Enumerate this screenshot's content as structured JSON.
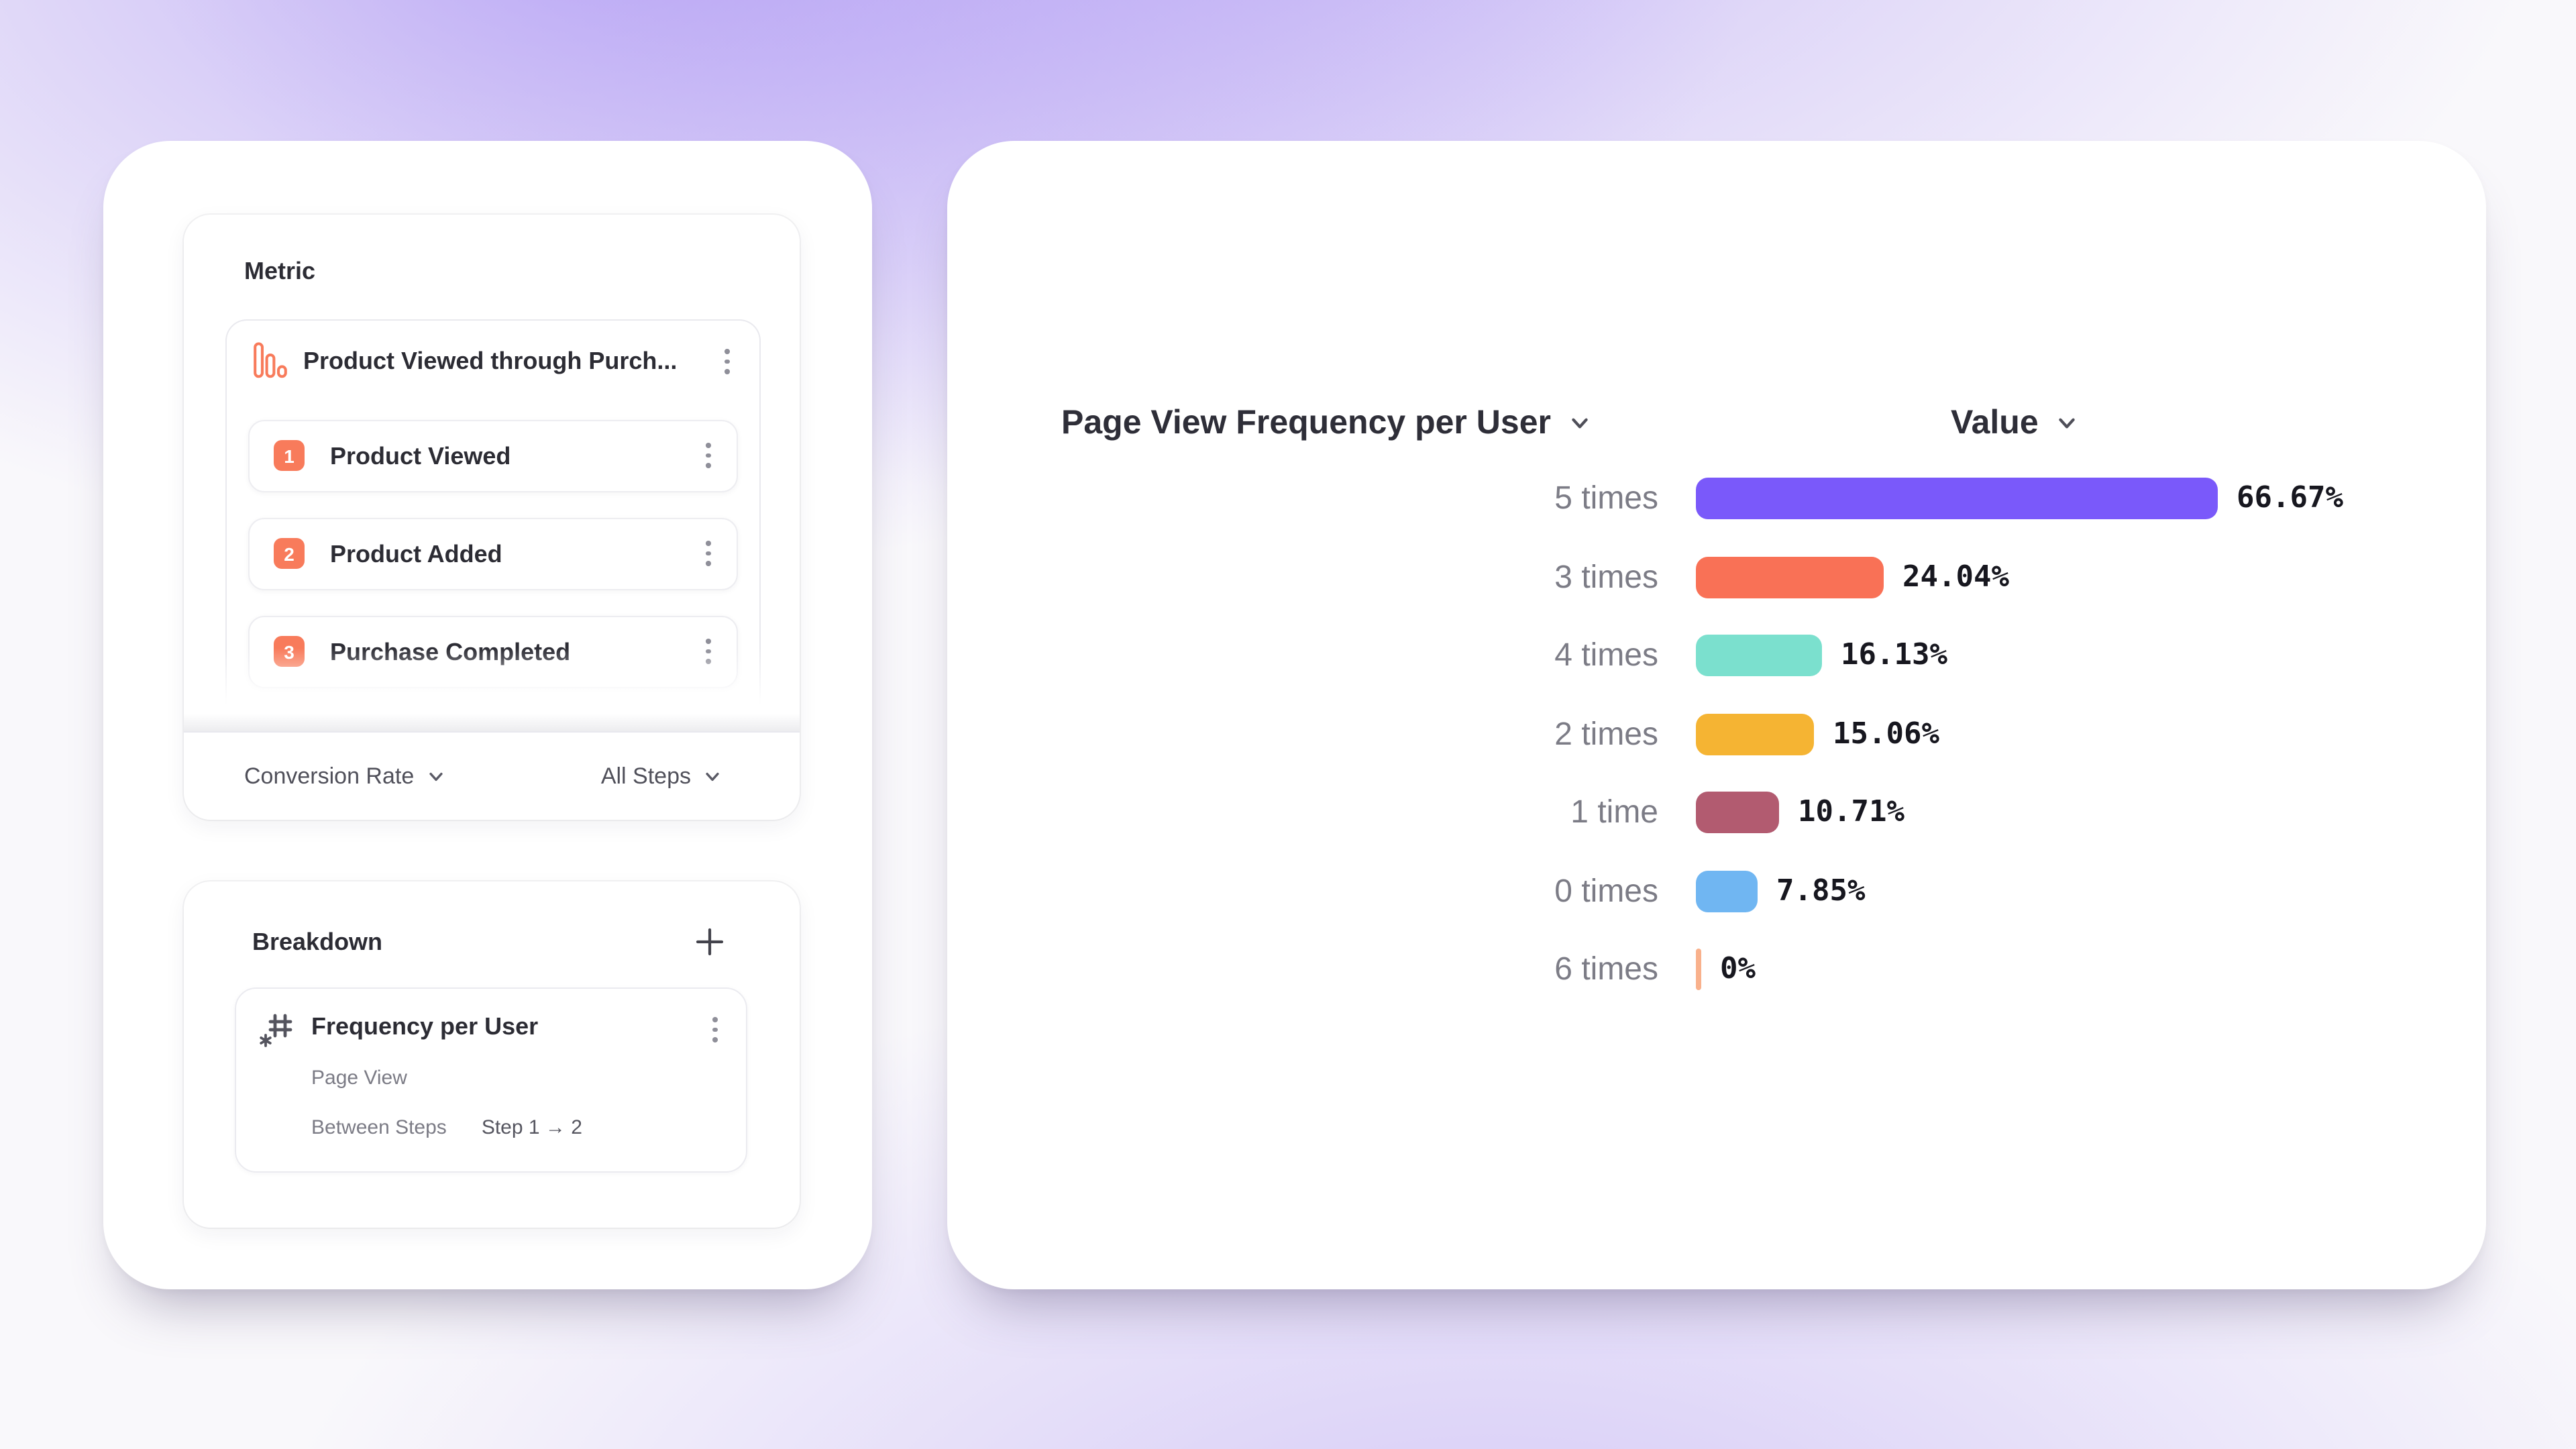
{
  "metric_panel": {
    "title": "Metric",
    "funnel_card": {
      "icon": "bar-chart-icon",
      "title": "Product Viewed through Purch...",
      "steps": [
        {
          "number": "1",
          "label": "Product Viewed"
        },
        {
          "number": "2",
          "label": "Product Added"
        },
        {
          "number": "3",
          "label": "Purchase Completed"
        }
      ]
    },
    "footer": {
      "measure_dropdown": "Conversion Rate",
      "steps_dropdown": "All Steps"
    }
  },
  "breakdown_panel": {
    "title": "Breakdown",
    "item": {
      "icon": "hash-asterisk-icon",
      "title": "Frequency per User",
      "event": "Page View",
      "between_steps_label": "Between Steps",
      "between_steps_value": "Step 1 → 2"
    }
  },
  "chart_header": {
    "dimension": "Page View Frequency per User",
    "value": "Value"
  },
  "chart_data": {
    "type": "bar",
    "orientation": "horizontal",
    "title": "Page View Frequency per User",
    "value_column": "Value",
    "categories": [
      "5 times",
      "3 times",
      "4 times",
      "2 times",
      "1 time",
      "0 times",
      "6 times"
    ],
    "values": [
      66.67,
      24.04,
      16.13,
      15.06,
      10.71,
      7.85,
      0
    ],
    "value_labels": [
      "66.67%",
      "24.04%",
      "16.13%",
      "15.06%",
      "10.71%",
      "7.85%",
      "0%"
    ],
    "bar_colors": [
      "#7A59FA",
      "#F97156",
      "#7BE0CE",
      "#F5B433",
      "#B25B70",
      "#70B6F2",
      "#F9B18C"
    ],
    "unit": "%",
    "xlim": [
      0,
      70
    ],
    "grid": false,
    "legend": false
  },
  "colors": {
    "accent_orange": "#F87B5B",
    "panel_background": "#FFFFFF",
    "text_primary": "#2C2C34",
    "text_secondary": "#7B7B85",
    "text_control": "#50505A",
    "value_text": "#17171F"
  }
}
